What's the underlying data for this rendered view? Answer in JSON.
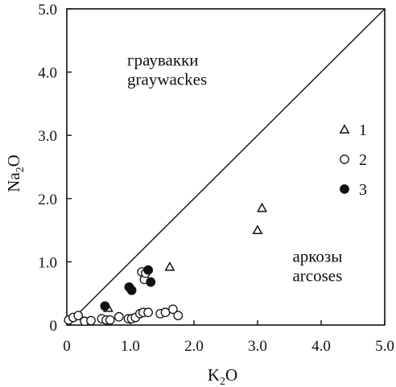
{
  "chart_data": {
    "type": "scatter",
    "xlabel": {
      "main": "K",
      "sub": "2",
      "tail": "O"
    },
    "ylabel": {
      "main": "Na",
      "sub": "2",
      "tail": "O"
    },
    "xlim": [
      0,
      5.0
    ],
    "ylim": [
      0,
      5.0
    ],
    "xticks": [
      0,
      1.0,
      2.0,
      3.0,
      4.0,
      5.0
    ],
    "yticks": [
      0,
      1.0,
      2.0,
      3.0,
      4.0,
      5.0
    ],
    "xtick_labels": [
      "0",
      "1.0",
      "2.0",
      "3.0",
      "4.0",
      "5.0"
    ],
    "ytick_labels": [
      "0",
      "1.0",
      "2.0",
      "3.0",
      "4.0",
      "5.0"
    ],
    "grid": false,
    "reference_line": {
      "from": [
        0,
        0
      ],
      "to": [
        5.0,
        5.0
      ]
    },
    "region_labels": [
      {
        "lines": [
          "граувакки",
          "graywackes"
        ],
        "x": 0.95,
        "y": 4.1
      },
      {
        "lines": [
          "аркозы",
          "arcoses"
        ],
        "x": 3.55,
        "y": 1.0
      }
    ],
    "legend": {
      "placement": "right",
      "entries": [
        {
          "label": "1",
          "marker": "triangle-open"
        },
        {
          "label": "2",
          "marker": "circle-open"
        },
        {
          "label": "3",
          "marker": "circle-filled"
        }
      ]
    },
    "series": [
      {
        "name": "1",
        "marker": "triangle-open",
        "x": [
          0.65,
          1.62,
          3.0,
          3.07
        ],
        "y": [
          0.27,
          0.92,
          1.5,
          1.85
        ]
      },
      {
        "name": "2",
        "marker": "circle-open",
        "x": [
          0.03,
          0.1,
          0.18,
          0.28,
          0.38,
          0.55,
          0.62,
          0.68,
          0.82,
          0.97,
          1.02,
          1.08,
          1.15,
          1.2,
          1.18,
          1.28,
          1.47,
          1.55,
          1.67,
          1.75
        ],
        "y": [
          0.08,
          0.12,
          0.15,
          0.06,
          0.07,
          0.1,
          0.08,
          0.08,
          0.13,
          0.1,
          0.1,
          0.12,
          0.18,
          0.2,
          0.84,
          0.2,
          0.18,
          0.2,
          0.25,
          0.15
        ],
        "extra": [
          {
            "x": 1.22,
            "y": 0.72
          },
          {
            "x": 1.24,
            "y": 0.82
          }
        ]
      },
      {
        "name": "3",
        "marker": "circle-filled",
        "x": [
          0.6,
          0.98,
          1.02,
          1.28,
          1.32
        ],
        "y": [
          0.3,
          0.6,
          0.55,
          0.87,
          0.68
        ]
      }
    ]
  }
}
